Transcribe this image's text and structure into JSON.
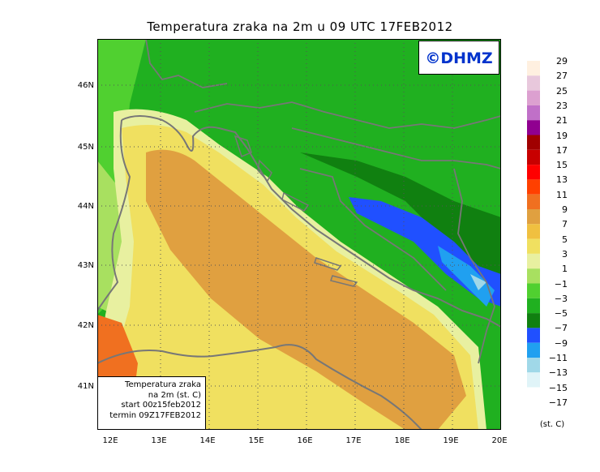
{
  "title": "Temperatura zraka na 2m u 09 UTC 17FEB2012",
  "stamp": "©DHMZ",
  "info": {
    "line1": "Temperatura zraka",
    "line2": "na 2m (st. C)",
    "line3": "start 00z15feb2012",
    "line4": "termin 09Z17FEB2012"
  },
  "axes": {
    "lat_labels": [
      "46N",
      "45N",
      "44N",
      "43N",
      "42N",
      "41N"
    ],
    "lon_labels": [
      "12E",
      "13E",
      "14E",
      "15E",
      "16E",
      "17E",
      "18E",
      "19E",
      "20E"
    ]
  },
  "legend": {
    "unit": "(st. C)",
    "labels": [
      "29",
      "27",
      "25",
      "23",
      "21",
      "19",
      "17",
      "15",
      "13",
      "11",
      "9",
      "7",
      "5",
      "3",
      "1",
      "−1",
      "−3",
      "−5",
      "−7",
      "−9",
      "−11",
      "−13",
      "−15",
      "−17"
    ],
    "colors": [
      "#fff0e0",
      "#e8c8dc",
      "#dca0d0",
      "#c070c8",
      "#900090",
      "#a00000",
      "#c80000",
      "#ff0000",
      "#ff4000",
      "#f07020",
      "#e0a040",
      "#f0c040",
      "#f0e060",
      "#e8f0a0",
      "#a8e060",
      "#50d030",
      "#20b020",
      "#108010",
      "#2050ff",
      "#20a0f0",
      "#a0d8e8",
      "#e0f4f8",
      "#ffffff"
    ]
  }
}
